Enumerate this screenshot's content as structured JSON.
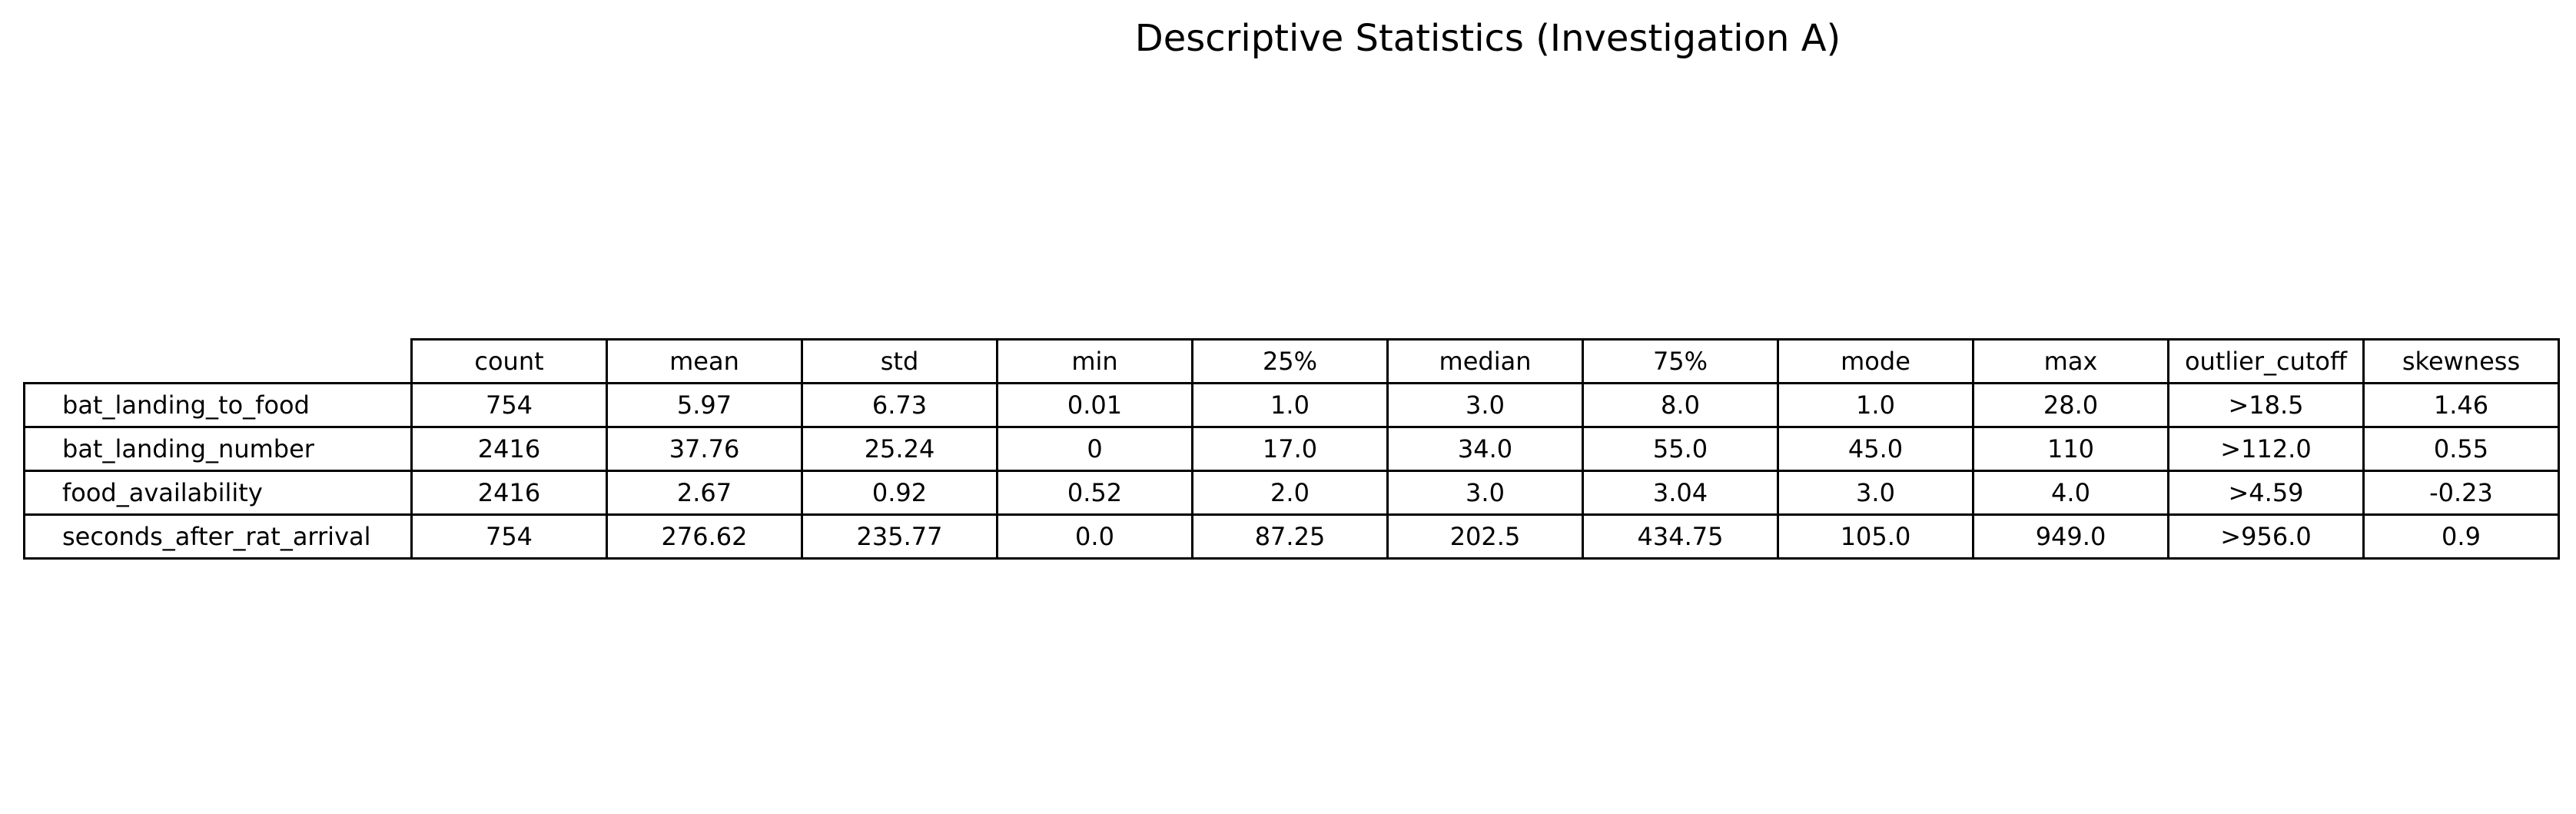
{
  "chart_data": {
    "type": "table",
    "title": "Descriptive Statistics (Investigation A)",
    "columns": [
      "count",
      "mean",
      "std",
      "min",
      "25%",
      "median",
      "75%",
      "mode",
      "max",
      "outlier_cutoff",
      "skewness"
    ],
    "rows": [
      {
        "label": "bat_landing_to_food",
        "values": [
          "754",
          "5.97",
          "6.73",
          "0.01",
          "1.0",
          "3.0",
          "8.0",
          "1.0",
          "28.0",
          ">18.5",
          "1.46"
        ]
      },
      {
        "label": "bat_landing_number",
        "values": [
          "2416",
          "37.76",
          "25.24",
          "0",
          "17.0",
          "34.0",
          "55.0",
          "45.0",
          "110",
          ">112.0",
          "0.55"
        ]
      },
      {
        "label": "food_availability",
        "values": [
          "2416",
          "2.67",
          "0.92",
          "0.52",
          "2.0",
          "3.0",
          "3.04",
          "3.0",
          "4.0",
          ">4.59",
          "-0.23"
        ]
      },
      {
        "label": "seconds_after_rat_arrival",
        "values": [
          "754",
          "276.62",
          "235.77",
          "0.0",
          "87.25",
          "202.5",
          "434.75",
          "105.0",
          "949.0",
          ">956.0",
          "0.9"
        ]
      }
    ]
  }
}
